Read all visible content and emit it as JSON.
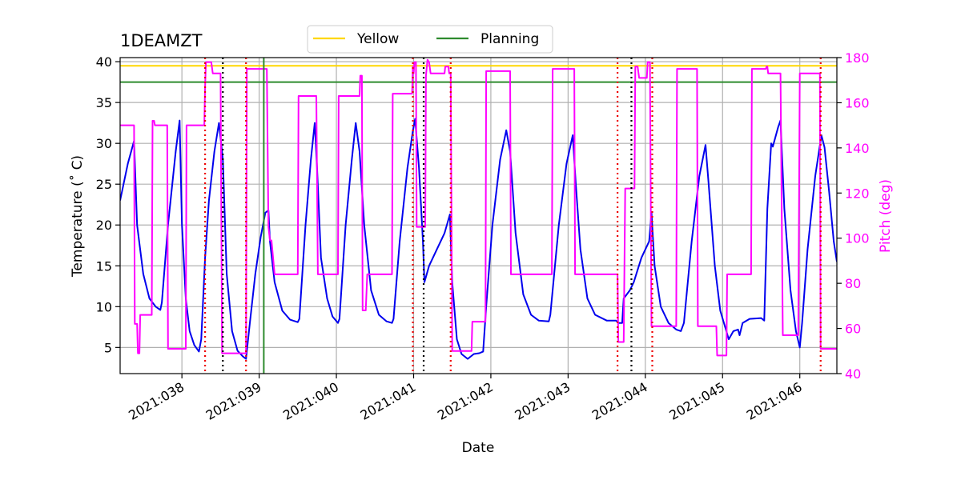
{
  "chart_data": {
    "type": "line",
    "title": "1DEAMZT",
    "xlabel": "Date",
    "ylabel_left": "Temperature ($^\\circ$C)",
    "ylabel_left_display": "Temperature (˚ C)",
    "ylabel_right": "Pitch (deg)",
    "xlim": [
      37.2,
      46.48
    ],
    "ylim_left": [
      1.8,
      40.5
    ],
    "ylim_right": [
      40,
      180
    ],
    "grid": true,
    "legend_position": "top-center",
    "x_ticks": [
      38,
      39,
      40,
      41,
      42,
      43,
      44,
      45,
      46
    ],
    "x_tick_labels": [
      "2021:038",
      "2021:039",
      "2021:040",
      "2021:041",
      "2021:042",
      "2021:043",
      "2021:044",
      "2021:045",
      "2021:046"
    ],
    "y_left_ticks": [
      5,
      10,
      15,
      20,
      25,
      30,
      35,
      40
    ],
    "y_left_tick_labels": [
      "5",
      "10",
      "15",
      "20",
      "25",
      "30",
      "35",
      "40"
    ],
    "y_right_ticks": [
      40,
      60,
      80,
      100,
      120,
      140,
      160,
      180
    ],
    "y_right_tick_labels": [
      "40",
      "60",
      "80",
      "100",
      "120",
      "140",
      "160",
      "180"
    ],
    "limits": [
      {
        "name": "Yellow",
        "value": 39.5,
        "color": "#ffd700"
      },
      {
        "name": "Planning",
        "value": 37.5,
        "color": "#2e8b2e"
      }
    ],
    "legend": [
      {
        "label": "Yellow",
        "color": "#ffd700"
      },
      {
        "label": "Planning",
        "color": "#2e8b2e"
      }
    ],
    "vlines": {
      "black_dotted": [
        38.53,
        41.13,
        43.82
      ],
      "red_dotted": [
        38.3,
        38.83,
        40.99,
        41.48,
        43.64,
        44.09,
        46.27
      ],
      "green_solid": [
        39.06
      ]
    },
    "series": [
      {
        "name": "Temperature",
        "axis": "left",
        "color": "#0000ee",
        "points": [
          [
            37.2,
            23.0
          ],
          [
            37.3,
            27.5
          ],
          [
            37.38,
            30.3
          ],
          [
            37.42,
            20.0
          ],
          [
            37.5,
            14.0
          ],
          [
            37.58,
            11.0
          ],
          [
            37.66,
            10.0
          ],
          [
            37.72,
            9.6
          ],
          [
            37.74,
            10.5
          ],
          [
            37.82,
            20.0
          ],
          [
            37.92,
            29.0
          ],
          [
            37.97,
            32.8
          ],
          [
            38.0,
            20.0
          ],
          [
            38.05,
            11.0
          ],
          [
            38.1,
            7.0
          ],
          [
            38.16,
            5.3
          ],
          [
            38.22,
            4.5
          ],
          [
            38.25,
            6.0
          ],
          [
            38.3,
            16.0
          ],
          [
            38.35,
            23.0
          ],
          [
            38.42,
            29.0
          ],
          [
            38.48,
            32.5
          ],
          [
            38.53,
            28.0
          ],
          [
            38.58,
            14.0
          ],
          [
            38.65,
            7.0
          ],
          [
            38.72,
            4.6
          ],
          [
            38.79,
            3.9
          ],
          [
            38.83,
            3.6
          ],
          [
            38.88,
            8.0
          ],
          [
            38.95,
            14.0
          ],
          [
            39.02,
            18.5
          ],
          [
            39.08,
            21.5
          ],
          [
            39.12,
            21.8
          ],
          [
            39.14,
            18.0
          ],
          [
            39.2,
            13.0
          ],
          [
            39.3,
            9.5
          ],
          [
            39.4,
            8.4
          ],
          [
            39.5,
            8.1
          ],
          [
            39.52,
            8.5
          ],
          [
            39.6,
            20.0
          ],
          [
            39.67,
            28.0
          ],
          [
            39.72,
            32.5
          ],
          [
            39.75,
            27.0
          ],
          [
            39.8,
            16.0
          ],
          [
            39.88,
            11.0
          ],
          [
            39.95,
            8.8
          ],
          [
            40.02,
            8.0
          ],
          [
            40.04,
            8.5
          ],
          [
            40.12,
            20.0
          ],
          [
            40.2,
            28.0
          ],
          [
            40.25,
            32.5
          ],
          [
            40.3,
            29.0
          ],
          [
            40.36,
            20.0
          ],
          [
            40.45,
            12.0
          ],
          [
            40.55,
            9.0
          ],
          [
            40.65,
            8.2
          ],
          [
            40.72,
            8.0
          ],
          [
            40.74,
            8.5
          ],
          [
            40.82,
            18.0
          ],
          [
            40.92,
            27.0
          ],
          [
            40.99,
            31.5
          ],
          [
            41.02,
            33.0
          ],
          [
            41.07,
            27.0
          ],
          [
            41.12,
            18.0
          ],
          [
            41.14,
            13.0
          ],
          [
            41.2,
            15.0
          ],
          [
            41.3,
            17.0
          ],
          [
            41.4,
            19.0
          ],
          [
            41.47,
            21.3
          ],
          [
            41.5,
            13.0
          ],
          [
            41.56,
            6.0
          ],
          [
            41.62,
            4.2
          ],
          [
            41.7,
            3.6
          ],
          [
            41.78,
            4.2
          ],
          [
            41.85,
            4.3
          ],
          [
            41.9,
            4.5
          ],
          [
            41.94,
            10.0
          ],
          [
            42.02,
            20.0
          ],
          [
            42.12,
            28.0
          ],
          [
            42.2,
            31.6
          ],
          [
            42.25,
            29.0
          ],
          [
            42.32,
            19.0
          ],
          [
            42.42,
            11.5
          ],
          [
            42.52,
            9.0
          ],
          [
            42.62,
            8.3
          ],
          [
            42.75,
            8.2
          ],
          [
            42.77,
            9.0
          ],
          [
            42.88,
            20.0
          ],
          [
            42.98,
            27.5
          ],
          [
            43.06,
            31.0
          ],
          [
            43.1,
            25.0
          ],
          [
            43.16,
            17.0
          ],
          [
            43.25,
            11.0
          ],
          [
            43.35,
            9.0
          ],
          [
            43.5,
            8.3
          ],
          [
            43.62,
            8.3
          ],
          [
            43.65,
            8.0
          ],
          [
            43.7,
            8.0
          ],
          [
            43.72,
            11.0
          ],
          [
            43.8,
            12.0
          ],
          [
            43.85,
            13.0
          ],
          [
            43.95,
            16.0
          ],
          [
            44.05,
            18.0
          ],
          [
            44.08,
            21.5
          ],
          [
            44.12,
            15.0
          ],
          [
            44.2,
            10.0
          ],
          [
            44.3,
            8.0
          ],
          [
            44.4,
            7.2
          ],
          [
            44.46,
            7.0
          ],
          [
            44.5,
            8.0
          ],
          [
            44.6,
            18.0
          ],
          [
            44.7,
            26.0
          ],
          [
            44.78,
            29.8
          ],
          [
            44.82,
            25.0
          ],
          [
            44.9,
            15.0
          ],
          [
            44.97,
            9.5
          ],
          [
            45.04,
            7.3
          ],
          [
            45.08,
            6.0
          ],
          [
            45.14,
            7.0
          ],
          [
            45.2,
            7.2
          ],
          [
            45.22,
            6.5
          ],
          [
            45.26,
            8.0
          ],
          [
            45.35,
            8.5
          ],
          [
            45.5,
            8.6
          ],
          [
            45.54,
            8.3
          ],
          [
            45.58,
            22.0
          ],
          [
            45.63,
            30.0
          ],
          [
            45.65,
            29.6
          ],
          [
            45.72,
            32.0
          ],
          [
            45.75,
            32.8
          ],
          [
            45.8,
            22.0
          ],
          [
            45.88,
            12.0
          ],
          [
            45.95,
            7.0
          ],
          [
            46.0,
            5.0
          ],
          [
            46.03,
            8.0
          ],
          [
            46.1,
            17.0
          ],
          [
            46.2,
            26.0
          ],
          [
            46.28,
            31.0
          ],
          [
            46.32,
            29.5
          ],
          [
            46.38,
            24.0
          ],
          [
            46.44,
            18.0
          ],
          [
            46.48,
            15.5
          ]
        ]
      },
      {
        "name": "Pitch",
        "axis": "right",
        "color": "#ff00ff",
        "points": [
          [
            37.2,
            150
          ],
          [
            37.38,
            150
          ],
          [
            37.39,
            62
          ],
          [
            37.42,
            62
          ],
          [
            37.43,
            49
          ],
          [
            37.45,
            49
          ],
          [
            37.46,
            66
          ],
          [
            37.61,
            66
          ],
          [
            37.62,
            152
          ],
          [
            37.64,
            152
          ],
          [
            37.65,
            150
          ],
          [
            37.81,
            150
          ],
          [
            37.82,
            51
          ],
          [
            38.05,
            51
          ],
          [
            38.06,
            150
          ],
          [
            38.29,
            150
          ],
          [
            38.3,
            167
          ],
          [
            38.31,
            178
          ],
          [
            38.38,
            178
          ],
          [
            38.4,
            173
          ],
          [
            38.5,
            173
          ],
          [
            38.52,
            49
          ],
          [
            38.83,
            49
          ],
          [
            38.84,
            175
          ],
          [
            39.1,
            175
          ],
          [
            39.12,
            105
          ],
          [
            39.14,
            99
          ],
          [
            39.16,
            99
          ],
          [
            39.2,
            84
          ],
          [
            39.5,
            84
          ],
          [
            39.51,
            163
          ],
          [
            39.74,
            163
          ],
          [
            39.76,
            84
          ],
          [
            40.02,
            84
          ],
          [
            40.03,
            163
          ],
          [
            40.3,
            163
          ],
          [
            40.31,
            172
          ],
          [
            40.33,
            172
          ],
          [
            40.34,
            68
          ],
          [
            40.38,
            68
          ],
          [
            40.4,
            84
          ],
          [
            40.72,
            84
          ],
          [
            40.73,
            164
          ],
          [
            40.98,
            164
          ],
          [
            40.99,
            176
          ],
          [
            41.0,
            173
          ],
          [
            41.01,
            178
          ],
          [
            41.03,
            178
          ],
          [
            41.04,
            105
          ],
          [
            41.15,
            105
          ],
          [
            41.16,
            172
          ],
          [
            41.18,
            179
          ],
          [
            41.2,
            178
          ],
          [
            41.22,
            173
          ],
          [
            41.4,
            173
          ],
          [
            41.41,
            176
          ],
          [
            41.45,
            176
          ],
          [
            41.46,
            173
          ],
          [
            41.48,
            173
          ],
          [
            41.5,
            50
          ],
          [
            41.75,
            50
          ],
          [
            41.76,
            63
          ],
          [
            41.93,
            63
          ],
          [
            41.94,
            174
          ],
          [
            42.25,
            174
          ],
          [
            42.26,
            84
          ],
          [
            42.79,
            84
          ],
          [
            42.8,
            175
          ],
          [
            43.08,
            175
          ],
          [
            43.09,
            84
          ],
          [
            43.64,
            84
          ],
          [
            43.65,
            54
          ],
          [
            43.72,
            54
          ],
          [
            43.74,
            122
          ],
          [
            43.86,
            122
          ],
          [
            43.87,
            176
          ],
          [
            43.9,
            176
          ],
          [
            43.92,
            171
          ],
          [
            44.02,
            171
          ],
          [
            44.03,
            178
          ],
          [
            44.06,
            178
          ],
          [
            44.08,
            61
          ],
          [
            44.4,
            61
          ],
          [
            44.41,
            175
          ],
          [
            44.67,
            175
          ],
          [
            44.68,
            61
          ],
          [
            44.92,
            61
          ],
          [
            44.93,
            48
          ],
          [
            45.05,
            48
          ],
          [
            45.06,
            84
          ],
          [
            45.37,
            84
          ],
          [
            45.38,
            175
          ],
          [
            45.56,
            175
          ],
          [
            45.57,
            176
          ],
          [
            45.58,
            176
          ],
          [
            45.59,
            173
          ],
          [
            45.75,
            173
          ],
          [
            45.78,
            57
          ],
          [
            45.98,
            57
          ],
          [
            46.0,
            173
          ],
          [
            46.26,
            173
          ],
          [
            46.27,
            51
          ],
          [
            46.48,
            51
          ]
        ]
      }
    ]
  }
}
